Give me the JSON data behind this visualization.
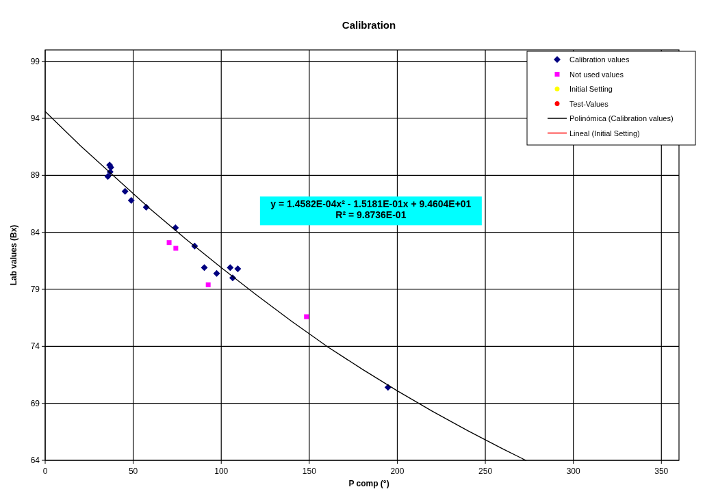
{
  "chart_data": {
    "type": "scatter",
    "title": "Calibration",
    "xlabel": "P comp (°)",
    "ylabel": "Lab values (Bx)",
    "xlim": [
      0,
      360
    ],
    "xticks": [
      0,
      50,
      100,
      150,
      200,
      250,
      300,
      350
    ],
    "ylim": [
      64,
      100
    ],
    "yticks": [
      64,
      69,
      74,
      79,
      84,
      89,
      94,
      99
    ],
    "grid": true,
    "legend": "top right",
    "annotations": [
      "y = 1.4582E-04x² - 1.5181E-01x + 9.4604E+01",
      "R² = 9.8736E-01"
    ],
    "series": [
      {
        "name": "Calibration values",
        "marker": "diamond",
        "color": "#000080",
        "x": [
          35.6,
          36.9,
          36.6,
          37.3,
          45.4,
          48.9,
          57.4,
          74.0,
          84.9,
          90.4,
          97.4,
          105.1,
          109.4,
          106.5,
          194.7
        ],
        "values": [
          88.9,
          89.3,
          89.9,
          89.7,
          87.6,
          86.8,
          86.2,
          84.4,
          82.8,
          80.9,
          80.4,
          80.9,
          80.8,
          80.0,
          70.4
        ]
      },
      {
        "name": "Not used values",
        "marker": "square",
        "color": "#ff00ff",
        "x": [
          70.4,
          74.2,
          92.6,
          148.4
        ],
        "values": [
          83.1,
          82.6,
          79.4,
          76.6
        ]
      },
      {
        "name": "Initial Setting",
        "marker": "circle",
        "color": "#ffff00"
      },
      {
        "name": "Test-Values",
        "marker": "circle",
        "color": "#ff0000"
      },
      {
        "name": "Polinómica (Calibration values)",
        "type": "line",
        "line_style": "solid",
        "color": "#000000",
        "x": [
          0,
          20,
          40,
          60,
          80,
          100,
          120,
          140,
          160,
          180,
          200,
          220,
          240,
          260,
          273
        ],
        "values": [
          94.6,
          91.6,
          88.8,
          86.0,
          83.4,
          80.9,
          78.5,
          76.2,
          74.0,
          72.0,
          70.1,
          68.3,
          66.6,
          65.0,
          64.0
        ]
      },
      {
        "name": "Lineal (Initial Setting)",
        "type": "line",
        "line_style": "solid",
        "color": "#ff0000"
      }
    ]
  }
}
